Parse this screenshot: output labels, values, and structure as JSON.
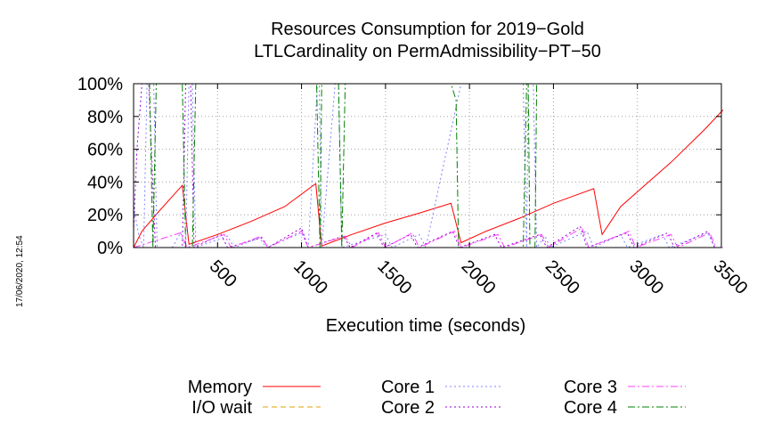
{
  "timestamp": "17/06/2020, 12:54",
  "chart_data": {
    "type": "line",
    "title": "Resources Consumption for 2019−Gold",
    "subtitle": "LTLCardinality on PermAdmissibility−PT−50",
    "xlabel": "Execution time (seconds)",
    "ylabel": "",
    "xlim": [
      0,
      3500
    ],
    "ylim": [
      0,
      100
    ],
    "x_ticks": [
      500,
      1000,
      1500,
      2000,
      2500,
      3000,
      3500
    ],
    "x_tick_labels": [
      "500",
      "1000",
      "1500",
      "2000",
      "2500",
      "3000",
      "3500"
    ],
    "y_ticks": [
      0,
      20,
      40,
      60,
      80,
      100
    ],
    "y_tick_labels": [
      "0%",
      "20%",
      "40%",
      "60%",
      "80%",
      "100%"
    ],
    "grid": true,
    "legend_placement": "bottom",
    "series": [
      {
        "name": "Memory",
        "color": "#ff0000",
        "dash": "solid",
        "points": [
          [
            0,
            0
          ],
          [
            50,
            10
          ],
          [
            150,
            22
          ],
          [
            290,
            38
          ],
          [
            330,
            2
          ],
          [
            500,
            8
          ],
          [
            700,
            16
          ],
          [
            900,
            25
          ],
          [
            1085,
            39
          ],
          [
            1120,
            1
          ],
          [
            1300,
            8
          ],
          [
            1500,
            15
          ],
          [
            1700,
            21
          ],
          [
            1890,
            27
          ],
          [
            1950,
            3
          ],
          [
            2100,
            10
          ],
          [
            2300,
            18
          ],
          [
            2500,
            27
          ],
          [
            2740,
            36
          ],
          [
            2790,
            8
          ],
          [
            2900,
            25
          ],
          [
            3000,
            34
          ],
          [
            3200,
            52
          ],
          [
            3400,
            72
          ],
          [
            3510,
            84
          ]
        ]
      },
      {
        "name": "I/O wait",
        "color": "#e0a000",
        "dash": "dashed",
        "points": [
          [
            0,
            0
          ],
          [
            3510,
            0
          ]
        ]
      },
      {
        "name": "Core 1",
        "color": "#8080ff",
        "dash": "dotted",
        "points": [
          [
            0,
            25
          ],
          [
            30,
            8
          ],
          [
            60,
            0
          ],
          [
            80,
            100
          ],
          [
            120,
            100
          ],
          [
            140,
            0
          ],
          [
            230,
            0
          ],
          [
            280,
            9
          ],
          [
            310,
            0
          ],
          [
            330,
            100
          ],
          [
            350,
            100
          ],
          [
            370,
            0
          ],
          [
            560,
            7
          ],
          [
            600,
            0
          ],
          [
            750,
            6
          ],
          [
            790,
            0
          ],
          [
            1000,
            9
          ],
          [
            1040,
            0
          ],
          [
            1095,
            100
          ],
          [
            1105,
            100
          ],
          [
            1120,
            0
          ],
          [
            1200,
            100
          ],
          [
            1220,
            100
          ],
          [
            1240,
            0
          ],
          [
            1500,
            8
          ],
          [
            1540,
            0
          ],
          [
            1700,
            8
          ],
          [
            1740,
            0
          ],
          [
            1950,
            100
          ],
          [
            2320,
            100
          ],
          [
            2340,
            0
          ],
          [
            2350,
            100
          ],
          [
            2380,
            100
          ],
          [
            2400,
            0
          ],
          [
            2450,
            7
          ],
          [
            2480,
            0
          ],
          [
            2700,
            10
          ],
          [
            2740,
            0
          ],
          [
            2900,
            8
          ],
          [
            2940,
            0
          ],
          [
            3150,
            8
          ],
          [
            3190,
            0
          ],
          [
            3420,
            9
          ],
          [
            3460,
            0
          ],
          [
            3510,
            0
          ]
        ]
      },
      {
        "name": "Core 2",
        "color": "#9400d3",
        "dash": "dotted",
        "points": [
          [
            0,
            10
          ],
          [
            20,
            60
          ],
          [
            50,
            100
          ],
          [
            90,
            100
          ],
          [
            130,
            0
          ],
          [
            290,
            0
          ],
          [
            310,
            100
          ],
          [
            340,
            100
          ],
          [
            360,
            0
          ],
          [
            520,
            8
          ],
          [
            560,
            0
          ],
          [
            760,
            6
          ],
          [
            800,
            0
          ],
          [
            1000,
            12
          ],
          [
            1040,
            0
          ],
          [
            1250,
            7
          ],
          [
            1290,
            0
          ],
          [
            1450,
            9
          ],
          [
            1490,
            0
          ],
          [
            1650,
            8
          ],
          [
            1690,
            0
          ],
          [
            1900,
            10
          ],
          [
            1940,
            0
          ],
          [
            2150,
            8
          ],
          [
            2190,
            0
          ],
          [
            2420,
            8
          ],
          [
            2460,
            0
          ],
          [
            2660,
            13
          ],
          [
            2700,
            0
          ],
          [
            2940,
            9
          ],
          [
            2980,
            0
          ],
          [
            3180,
            9
          ],
          [
            3220,
            0
          ],
          [
            3420,
            10
          ],
          [
            3460,
            0
          ],
          [
            3510,
            0
          ]
        ]
      },
      {
        "name": "Core 3",
        "color": "#ff40ff",
        "dash": "dashdot",
        "points": [
          [
            0,
            0
          ],
          [
            280,
            9
          ],
          [
            320,
            0
          ],
          [
            540,
            8
          ],
          [
            580,
            0
          ],
          [
            760,
            7
          ],
          [
            800,
            0
          ],
          [
            1000,
            10
          ],
          [
            1040,
            0
          ],
          [
            1260,
            7
          ],
          [
            1300,
            0
          ],
          [
            1460,
            9
          ],
          [
            1500,
            0
          ],
          [
            1660,
            9
          ],
          [
            1700,
            0
          ],
          [
            1910,
            10
          ],
          [
            1950,
            0
          ],
          [
            2170,
            8
          ],
          [
            2210,
            0
          ],
          [
            2430,
            8
          ],
          [
            2470,
            0
          ],
          [
            2670,
            12
          ],
          [
            2710,
            0
          ],
          [
            2950,
            10
          ],
          [
            2990,
            0
          ],
          [
            3200,
            8
          ],
          [
            3240,
            0
          ],
          [
            3430,
            9
          ],
          [
            3470,
            0
          ],
          [
            3510,
            0
          ]
        ]
      },
      {
        "name": "Core 4",
        "color": "#008000",
        "dash": "dashdot",
        "points": [
          [
            0,
            100
          ],
          [
            95,
            100
          ],
          [
            115,
            0
          ],
          [
            135,
            100
          ],
          [
            290,
            100
          ],
          [
            310,
            0
          ],
          [
            350,
            0
          ],
          [
            370,
            100
          ],
          [
            1090,
            100
          ],
          [
            1110,
            0
          ],
          [
            1120,
            100
          ],
          [
            1220,
            100
          ],
          [
            1240,
            0
          ],
          [
            1260,
            100
          ],
          [
            1890,
            100
          ],
          [
            1920,
            90
          ],
          [
            1935,
            0
          ],
          [
            1960,
            0
          ],
          [
            2320,
            0
          ],
          [
            2340,
            100
          ],
          [
            2350,
            100
          ],
          [
            2360,
            0
          ],
          [
            2390,
            0
          ],
          [
            2400,
            100
          ],
          [
            3510,
            100
          ]
        ]
      }
    ]
  }
}
